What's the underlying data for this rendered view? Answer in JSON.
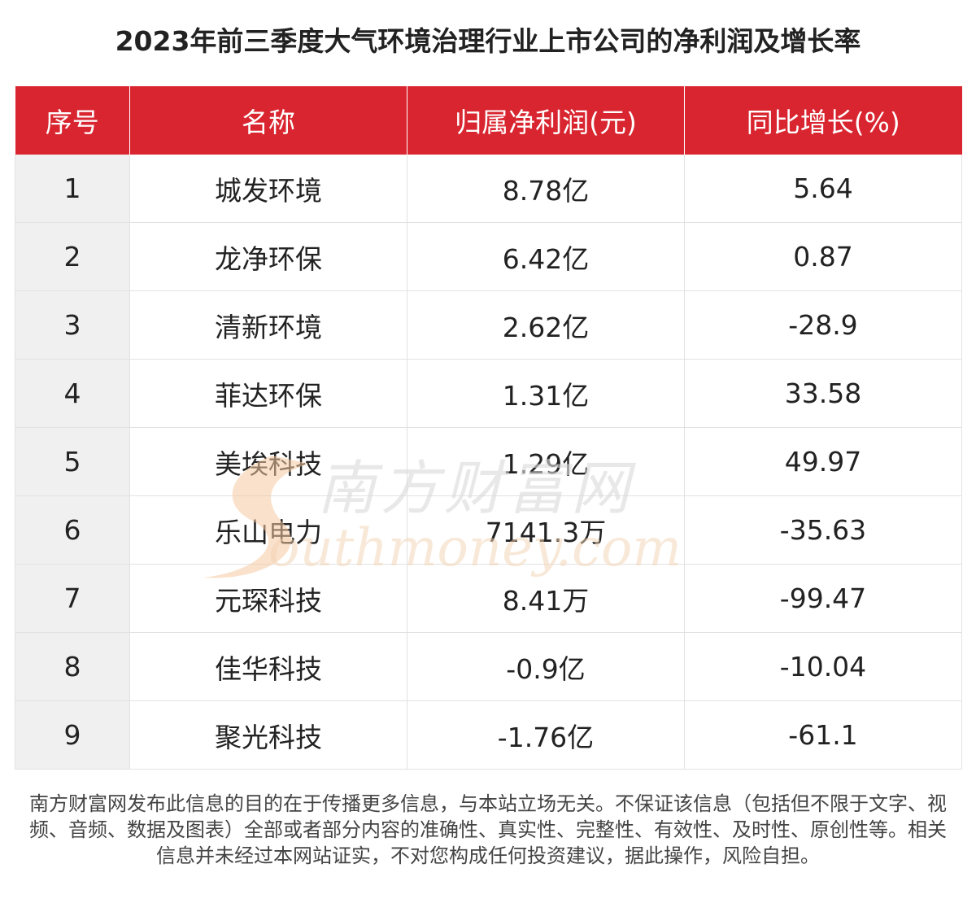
{
  "title": "2023年前三季度大气环境治理行业上市公司的净利润及增长率",
  "table": {
    "headers": [
      "序号",
      "名称",
      "归属净利润(元)",
      "同比增长(%)"
    ],
    "rows": [
      [
        "1",
        "城发环境",
        "8.78亿",
        "5.64"
      ],
      [
        "2",
        "龙净环保",
        "6.42亿",
        "0.87"
      ],
      [
        "3",
        "清新环境",
        "2.62亿",
        "-28.9"
      ],
      [
        "4",
        "菲达环保",
        "1.31亿",
        "33.58"
      ],
      [
        "5",
        "美埃科技",
        "1.29亿",
        "49.97"
      ],
      [
        "6",
        "乐山电力",
        "7141.3万",
        "-35.63"
      ],
      [
        "7",
        "元琛科技",
        "8.41万",
        "-99.47"
      ],
      [
        "8",
        "佳华科技",
        "-0.9亿",
        "-10.04"
      ],
      [
        "9",
        "聚光科技",
        "-1.76亿",
        "-61.1"
      ]
    ]
  },
  "watermark": {
    "cn": "南方财富网",
    "en": "outhmoney.com"
  },
  "disclaimer": "南方财富网发布此信息的目的在于传播更多信息，与本站立场无关。不保证该信息（包括但不限于文字、视频、音频、数据及图表）全部或者部分内容的准确性、真实性、完整性、有效性、及时性、原创性等。相关信息并未经过本网站证实，不对您构成任何投资建议，据此操作，风险自担。",
  "colors": {
    "header_bg": "#d9252f",
    "index_col_bg": "#f0f0f0"
  }
}
